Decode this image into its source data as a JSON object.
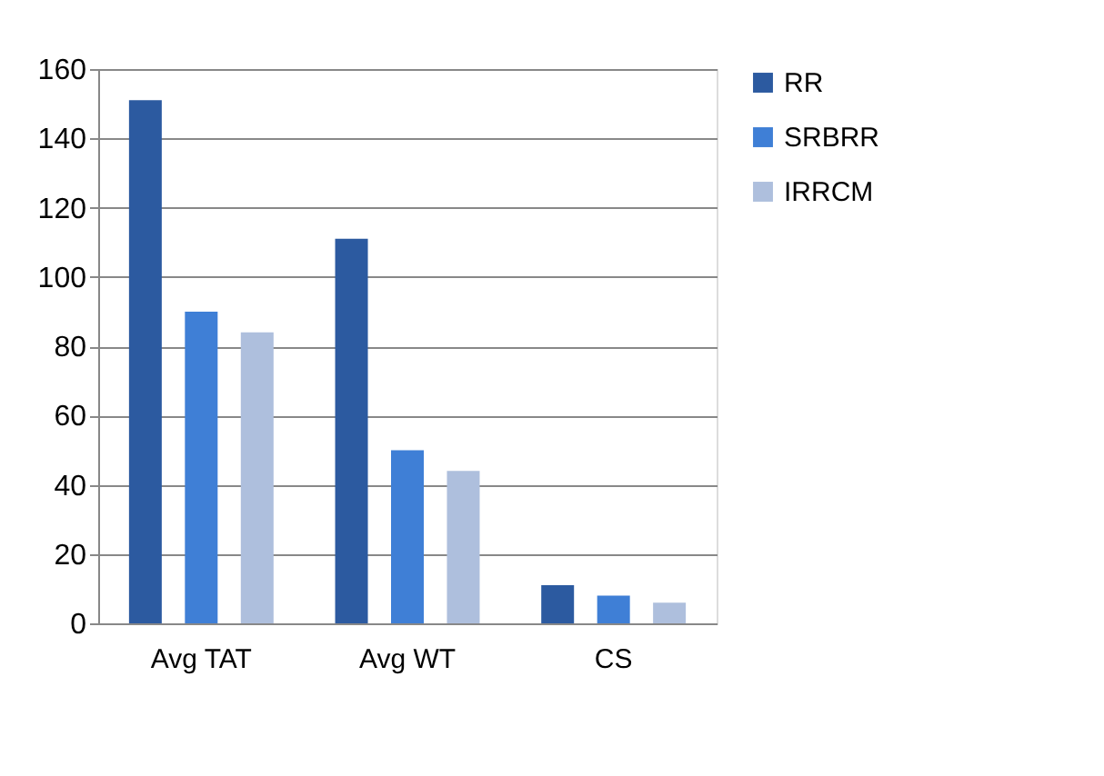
{
  "chart_data": {
    "type": "bar",
    "categories": [
      "Avg TAT",
      "Avg WT",
      "CS"
    ],
    "series": [
      {
        "name": "RR",
        "color": "#2c5aa0",
        "values": [
          151,
          111,
          11
        ]
      },
      {
        "name": "SRBRR",
        "color": "#3f7fd6",
        "values": [
          90,
          50,
          8
        ]
      },
      {
        "name": "IRRCM",
        "color": "#aebfdd",
        "values": [
          84,
          44,
          6
        ]
      }
    ],
    "ylim": [
      0,
      160
    ],
    "yticks": [
      0,
      20,
      40,
      60,
      80,
      100,
      120,
      140,
      160
    ],
    "grid": "y",
    "legend": "right"
  }
}
